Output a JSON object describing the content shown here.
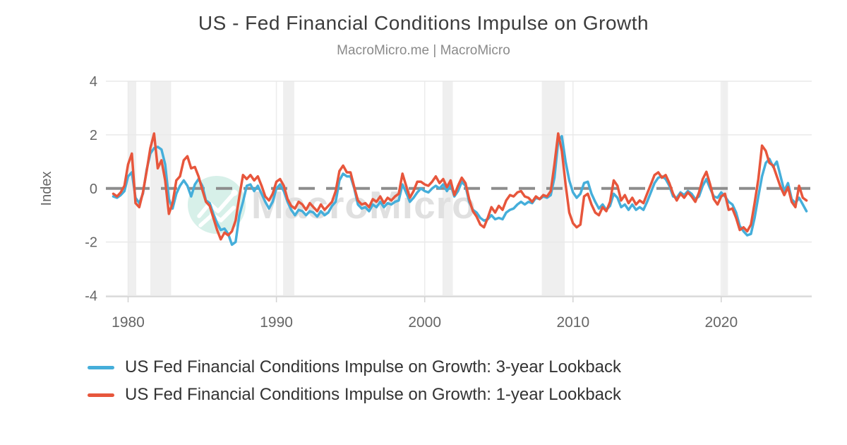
{
  "header": {
    "title": "US - Fed Financial Conditions Impulse on Growth",
    "subtitle": "MacroMicro.me | MacroMicro"
  },
  "watermark": {
    "text": "MacroMicro",
    "circle_color": "#d7f0e9",
    "text_color": "#e0e0e0",
    "glyph_color": "#ffffff"
  },
  "colors": {
    "blue": "#45AEDA",
    "red": "#E7563C",
    "grid": "#e9e9e9",
    "vgrid": "#ececec",
    "axis_line": "#d2d2d2",
    "tick_text": "#666666",
    "band": "#efefef",
    "zero_dash": "#8d8d8d"
  },
  "chart_data": {
    "type": "line",
    "title": "US - Fed Financial Conditions Impulse on Growth",
    "subtitle": "MacroMicro.me | MacroMicro",
    "xlabel": "",
    "ylabel": "Index",
    "ylim": [
      -4,
      4
    ],
    "xlim": [
      1978.5,
      2026.1
    ],
    "y_ticks": [
      4,
      2,
      0,
      -2,
      -4
    ],
    "x_ticks": [
      1980,
      1990,
      2000,
      2010,
      2020
    ],
    "grid": true,
    "legend_position": "bottom-left",
    "zero_baseline": 0,
    "recession_bands": [
      [
        1980.0,
        1980.55
      ],
      [
        1981.5,
        1982.9
      ],
      [
        1990.45,
        1991.2
      ],
      [
        2001.2,
        2001.9
      ],
      [
        2007.9,
        2009.45
      ],
      [
        2020.05,
        2020.45
      ]
    ],
    "x_start": 1979.0,
    "x_step": 0.25,
    "series": [
      {
        "name": "US Fed Financial Conditions Impulse on Growth: 3-year Lookback",
        "color": "#45AEDA",
        "values": [
          -0.3,
          -0.35,
          -0.25,
          -0.1,
          0.45,
          0.6,
          -0.35,
          -0.55,
          -0.2,
          0.7,
          1.3,
          1.5,
          1.55,
          1.45,
          0.9,
          -0.4,
          -0.75,
          -0.2,
          0.1,
          0.3,
          0.1,
          -0.3,
          0.15,
          0.35,
          0.1,
          -0.45,
          -0.55,
          -0.95,
          -1.3,
          -1.55,
          -1.5,
          -1.7,
          -2.1,
          -2.0,
          -1.0,
          -0.5,
          0.1,
          0.15,
          -0.1,
          0.1,
          -0.2,
          -0.5,
          -0.75,
          -0.5,
          0.0,
          0.15,
          -0.1,
          -0.5,
          -0.8,
          -1.0,
          -0.8,
          -0.85,
          -1.0,
          -0.85,
          -0.9,
          -1.05,
          -0.85,
          -1.0,
          -0.9,
          -0.65,
          -0.5,
          0.3,
          0.55,
          0.45,
          0.45,
          0.0,
          -0.6,
          -0.75,
          -0.7,
          -0.85,
          -0.6,
          -0.7,
          -0.5,
          -0.7,
          -0.55,
          -0.6,
          -0.5,
          -0.45,
          0.15,
          -0.15,
          -0.5,
          -0.35,
          -0.15,
          0.0,
          -0.1,
          -0.15,
          0.0,
          0.1,
          0.0,
          0.15,
          -0.1,
          0.15,
          -0.3,
          -0.1,
          0.25,
          0.1,
          -0.5,
          -0.8,
          -0.9,
          -1.1,
          -1.2,
          -1.15,
          -1.0,
          -1.15,
          -1.1,
          -1.15,
          -0.9,
          -0.8,
          -0.75,
          -0.6,
          -0.5,
          -0.6,
          -0.5,
          -0.55,
          -0.35,
          -0.4,
          -0.3,
          -0.35,
          -0.25,
          0.4,
          1.75,
          1.95,
          1.0,
          0.3,
          -0.15,
          -0.35,
          -0.2,
          0.2,
          0.25,
          -0.2,
          -0.5,
          -0.75,
          -0.6,
          -0.8,
          -0.65,
          -0.2,
          -0.35,
          -0.7,
          -0.6,
          -0.8,
          -0.6,
          -0.8,
          -0.7,
          -0.8,
          -0.5,
          -0.15,
          0.2,
          0.4,
          0.45,
          0.35,
          0.1,
          -0.3,
          -0.35,
          -0.15,
          -0.25,
          -0.1,
          -0.2,
          -0.4,
          -0.3,
          0.1,
          0.35,
          0.0,
          -0.3,
          -0.35,
          -0.15,
          -0.3,
          -0.5,
          -0.6,
          -0.9,
          -1.4,
          -1.6,
          -1.75,
          -1.7,
          -1.1,
          -0.3,
          0.45,
          0.95,
          1.1,
          0.8,
          1.0,
          0.45,
          -0.1,
          0.2,
          -0.4,
          -0.55,
          -0.35,
          -0.6,
          -0.85
        ]
      },
      {
        "name": "US Fed Financial Conditions Impulse on Growth: 1-year Lookback",
        "color": "#E7563C",
        "values": [
          -0.2,
          -0.3,
          -0.15,
          0.1,
          0.9,
          1.3,
          -0.55,
          -0.7,
          -0.15,
          0.65,
          1.5,
          2.05,
          0.75,
          1.05,
          0.3,
          -0.95,
          -0.55,
          0.3,
          0.45,
          1.05,
          1.2,
          0.75,
          0.8,
          0.45,
          -0.05,
          -0.5,
          -0.65,
          -1.1,
          -1.55,
          -1.9,
          -1.65,
          -1.75,
          -1.6,
          -1.2,
          -0.3,
          0.5,
          0.35,
          0.5,
          0.3,
          0.45,
          0.1,
          -0.3,
          -0.45,
          -0.2,
          0.25,
          0.35,
          0.1,
          -0.4,
          -0.65,
          -0.75,
          -0.5,
          -0.6,
          -0.8,
          -0.55,
          -0.7,
          -0.85,
          -0.6,
          -0.8,
          -0.65,
          -0.5,
          -0.1,
          0.65,
          0.85,
          0.6,
          0.6,
          0.05,
          -0.45,
          -0.6,
          -0.55,
          -0.7,
          -0.4,
          -0.5,
          -0.3,
          -0.55,
          -0.35,
          -0.45,
          -0.3,
          -0.2,
          0.55,
          0.1,
          -0.35,
          -0.1,
          0.25,
          0.25,
          0.15,
          0.1,
          0.25,
          0.45,
          0.2,
          0.35,
          0.05,
          0.3,
          -0.25,
          0.1,
          0.4,
          0.2,
          -0.4,
          -0.85,
          -1.05,
          -1.35,
          -1.45,
          -1.1,
          -0.7,
          -0.9,
          -0.65,
          -0.8,
          -0.45,
          -0.25,
          -0.3,
          -0.15,
          -0.1,
          -0.3,
          -0.35,
          -0.5,
          -0.3,
          -0.4,
          -0.25,
          -0.3,
          -0.1,
          0.9,
          2.05,
          1.4,
          0.15,
          -0.9,
          -1.3,
          -1.45,
          -1.35,
          -0.3,
          -0.2,
          -0.6,
          -0.9,
          -1.0,
          -0.7,
          -0.85,
          -0.5,
          0.3,
          0.1,
          -0.45,
          -0.25,
          -0.55,
          -0.35,
          -0.6,
          -0.45,
          -0.55,
          -0.2,
          0.15,
          0.5,
          0.6,
          0.4,
          0.5,
          0.2,
          -0.2,
          -0.45,
          -0.2,
          -0.35,
          -0.15,
          -0.3,
          -0.5,
          -0.15,
          0.35,
          0.62,
          0.15,
          -0.4,
          -0.6,
          -0.3,
          -0.2,
          -0.8,
          -0.75,
          -1.1,
          -1.55,
          -1.45,
          -1.6,
          -1.35,
          -0.55,
          0.35,
          1.6,
          1.4,
          0.95,
          0.85,
          0.45,
          0.05,
          -0.25,
          0.05,
          -0.5,
          -0.7,
          0.1,
          -0.35,
          -0.45
        ]
      }
    ]
  },
  "legend": {
    "items": [
      {
        "label": "US Fed Financial Conditions Impulse on Growth: 3-year Lookback",
        "color": "#45AEDA"
      },
      {
        "label": "US Fed Financial Conditions Impulse on Growth: 1-year Lookback",
        "color": "#E7563C"
      }
    ]
  }
}
